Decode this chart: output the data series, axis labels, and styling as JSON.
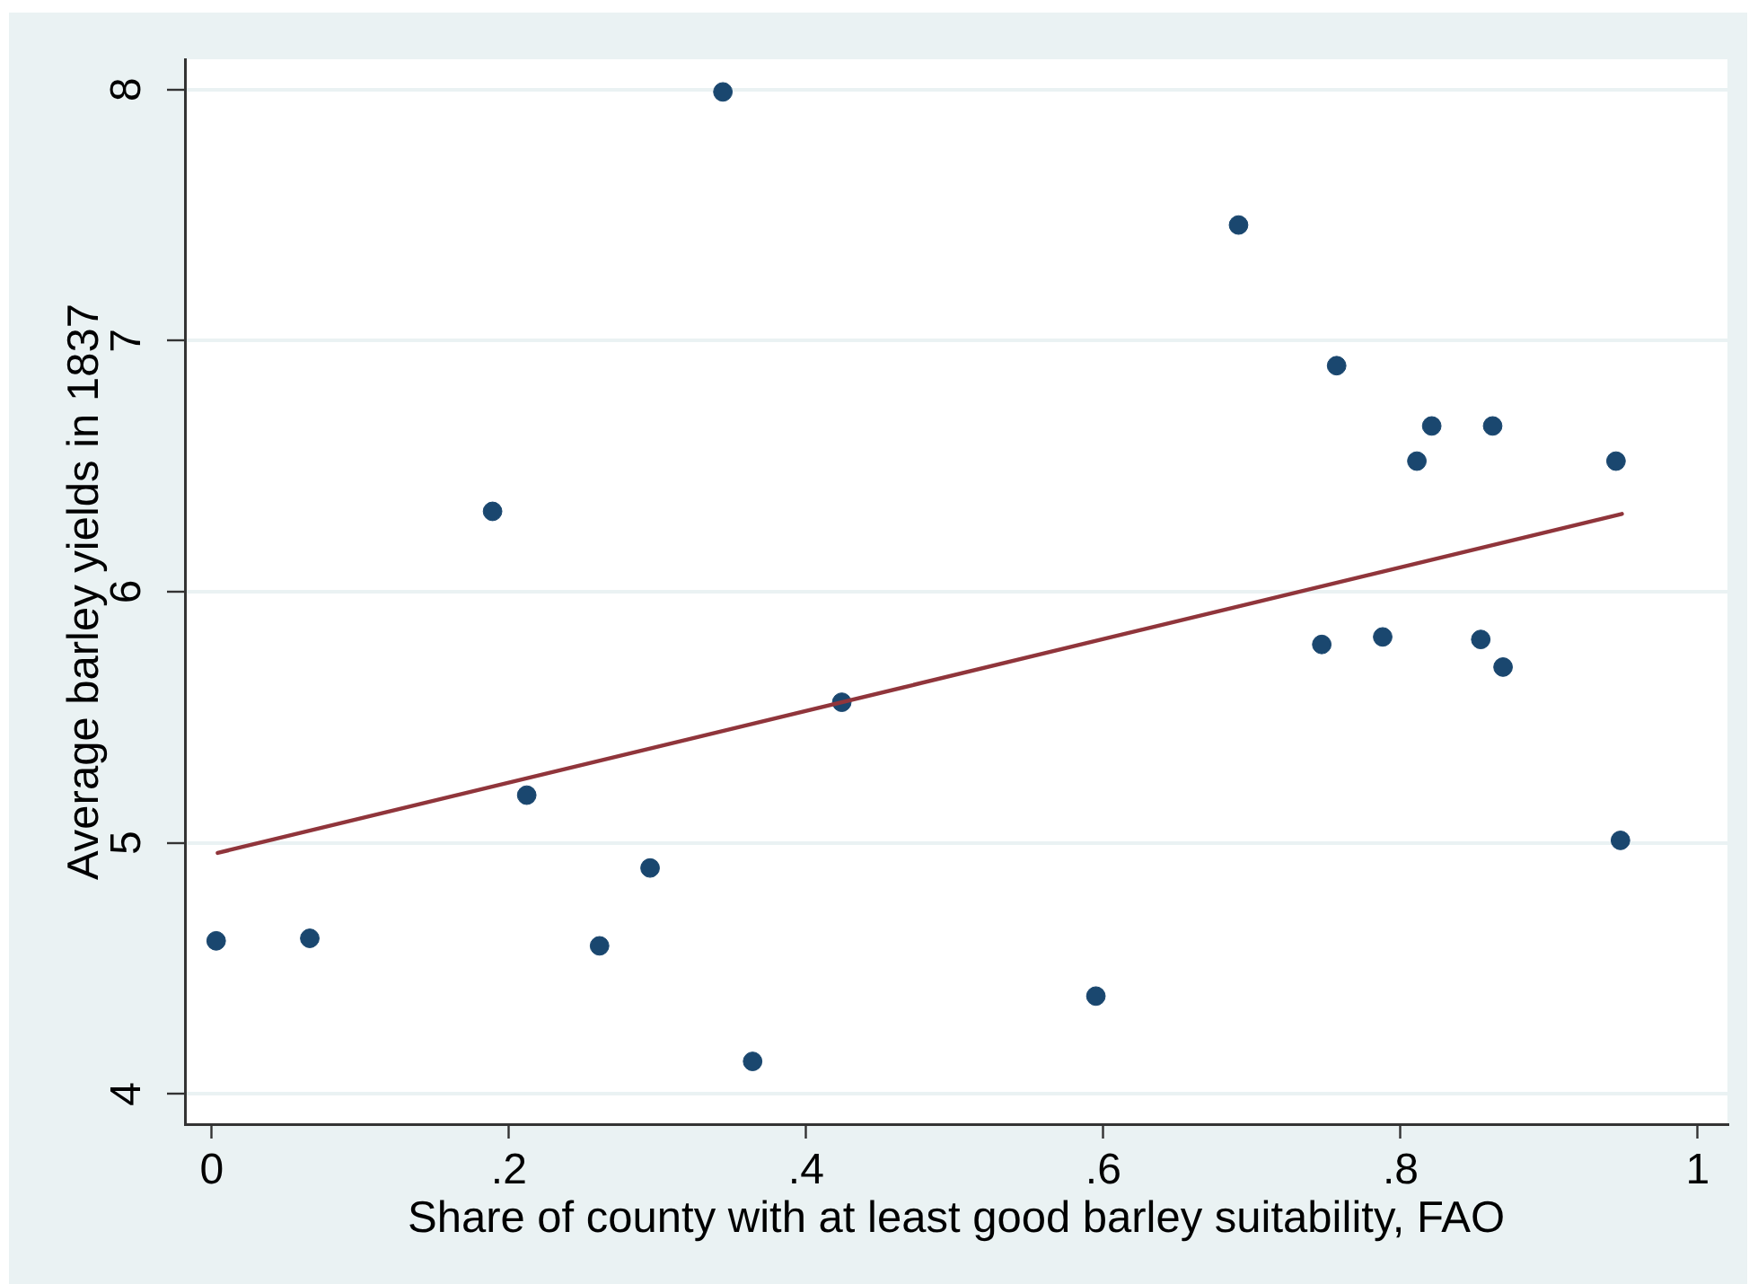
{
  "chart_data": {
    "type": "scatter",
    "xlabel": "Share of county with at least good barley suitability, FAO",
    "ylabel": "Average barley yields in 1837",
    "xlim": [
      -0.018,
      1.02
    ],
    "ylim": [
      3.88,
      8.12
    ],
    "xticks": [
      0,
      {
        "value": 0.2,
        "label": ".2"
      },
      {
        "value": 0.4,
        "label": ".4"
      },
      {
        "value": 0.6,
        "label": ".6"
      },
      {
        "value": 0.8,
        "label": ".8"
      },
      1
    ],
    "yticks": [
      4,
      5,
      6,
      7,
      8
    ],
    "grid": "y",
    "marker": "circle",
    "series": [
      {
        "color": "#1a476f",
        "x": [
          0.003,
          0.066,
          0.189,
          0.212,
          0.261,
          0.295,
          0.344,
          0.364,
          0.424,
          0.595,
          0.691,
          0.757,
          0.747,
          0.788,
          0.811,
          0.821,
          0.854,
          0.862,
          0.869,
          0.945,
          0.948
        ],
        "values": [
          4.61,
          4.62,
          6.32,
          5.19,
          4.59,
          4.9,
          7.99,
          4.13,
          5.56,
          4.39,
          7.46,
          6.9,
          5.79,
          5.82,
          6.52,
          6.66,
          5.81,
          6.66,
          5.7,
          6.52,
          5.01
        ]
      },
      {
        "type": "line",
        "color": "#90353b",
        "marker": "none",
        "line_style": "solid",
        "x": [
          0.004,
          0.949
        ],
        "values": [
          4.96,
          6.31
        ]
      }
    ]
  }
}
